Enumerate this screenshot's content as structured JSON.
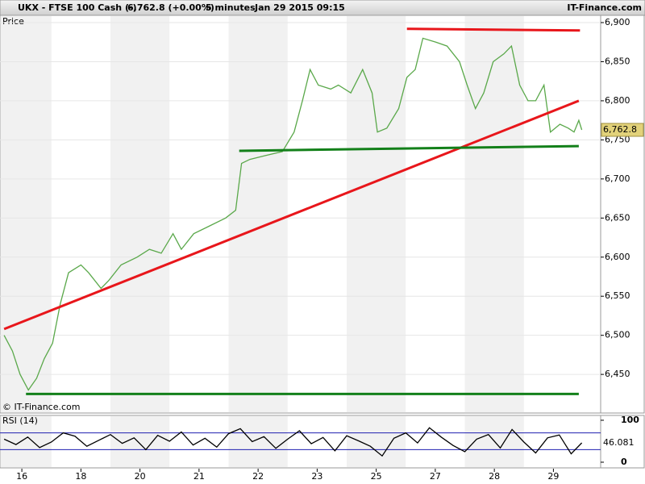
{
  "header": {
    "symbol": "UKX - FTSE 100 Cash (-)",
    "quote": "6,762.8 (+0.00%)",
    "period": "5 minutes",
    "date": "Jan 29 2015 09:15",
    "brand": "IT-Finance.com"
  },
  "chart_data": [
    {
      "type": "line",
      "title": "Price",
      "credit": "© IT-Finance.com",
      "xlim": [
        -0.37,
        9.8
      ],
      "xticks": [
        {
          "value": 0,
          "label": "16"
        },
        {
          "value": 1,
          "label": "18"
        },
        {
          "value": 2,
          "label": "20"
        },
        {
          "value": 3,
          "label": "21"
        },
        {
          "value": 4,
          "label": "22"
        },
        {
          "value": 5,
          "label": "23"
        },
        {
          "value": 6,
          "label": "25"
        },
        {
          "value": 7,
          "label": "27"
        },
        {
          "value": 8,
          "label": "28"
        },
        {
          "value": 9,
          "label": "29"
        }
      ],
      "ylim": [
        6400.6,
        6909.3
      ],
      "yticks": [
        {
          "value": 6450,
          "label": "6,450"
        },
        {
          "value": 6500,
          "label": "6,500"
        },
        {
          "value": 6550,
          "label": "6,550"
        },
        {
          "value": 6600,
          "label": "6,600"
        },
        {
          "value": 6650,
          "label": "6,650"
        },
        {
          "value": 6700,
          "label": "6,700"
        },
        {
          "value": 6750,
          "label": "6,750"
        },
        {
          "value": 6800,
          "label": "6,800"
        },
        {
          "value": 6850,
          "label": "6,850"
        },
        {
          "value": 6900,
          "label": "6,900"
        }
      ],
      "grid": true,
      "last": {
        "value": 6762.8,
        "label": "6,762.8"
      },
      "series": [
        {
          "color": "#5aa84a",
          "x": [
            -0.3,
            -0.16,
            -0.03,
            0.11,
            0.25,
            0.38,
            0.52,
            0.65,
            0.79,
            1.0,
            1.13,
            1.34,
            1.47,
            1.68,
            1.95,
            2.16,
            2.36,
            2.56,
            2.7,
            2.91,
            3.18,
            3.45,
            3.62,
            3.72,
            3.86,
            4.13,
            4.41,
            4.61,
            4.75,
            4.88,
            5.02,
            5.23,
            5.36,
            5.57,
            5.77,
            5.93,
            6.02,
            6.18,
            6.38,
            6.52,
            6.66,
            6.79,
            7.01,
            7.2,
            7.41,
            7.54,
            7.68,
            7.82,
            7.98,
            8.16,
            8.29,
            8.43,
            8.57,
            8.7,
            8.84,
            8.95,
            9.11,
            9.25,
            9.35,
            9.43,
            9.48
          ],
          "values": [
            6500,
            6480,
            6450,
            6430,
            6445,
            6470,
            6490,
            6540,
            6580,
            6590,
            6580,
            6560,
            6570,
            6590,
            6600,
            6610,
            6605,
            6630,
            6610,
            6630,
            6640,
            6650,
            6660,
            6720,
            6725,
            6730,
            6735,
            6760,
            6800,
            6840,
            6820,
            6815,
            6820,
            6810,
            6840,
            6810,
            6760,
            6765,
            6790,
            6830,
            6840,
            6880,
            6875,
            6870,
            6850,
            6820,
            6790,
            6810,
            6850,
            6860,
            6870,
            6820,
            6800,
            6800,
            6820,
            6760,
            6770,
            6765,
            6760,
            6775,
            6762.8
          ]
        }
      ],
      "trendlines": [
        {
          "color": "#e8161b",
          "x": [
            -0.3,
            9.43
          ],
          "y": [
            6508,
            6800
          ]
        },
        {
          "color": "#e8161b",
          "x": [
            6.52,
            9.45
          ],
          "y": [
            6892,
            6890
          ]
        },
        {
          "color": "#13801a",
          "x": [
            3.68,
            9.43
          ],
          "y": [
            6736,
            6742
          ]
        },
        {
          "color": "#13801a",
          "x": [
            0.07,
            9.43
          ],
          "y": [
            6425,
            6425
          ]
        }
      ]
    },
    {
      "type": "line",
      "title": "RSI (14)",
      "xlim": [
        -0.37,
        9.8
      ],
      "ylim": [
        -13.5,
        111.5
      ],
      "yticks": [
        0,
        100
      ],
      "levels": [
        30,
        70
      ],
      "last": {
        "value": 46.081,
        "label": "46.081"
      },
      "series": [
        {
          "color": "#000000",
          "x": [
            -0.3,
            -0.1,
            0.1,
            0.3,
            0.5,
            0.7,
            0.9,
            1.1,
            1.3,
            1.5,
            1.7,
            1.9,
            2.1,
            2.3,
            2.5,
            2.7,
            2.9,
            3.1,
            3.3,
            3.5,
            3.7,
            3.9,
            4.1,
            4.3,
            4.5,
            4.7,
            4.9,
            5.1,
            5.3,
            5.5,
            5.7,
            5.9,
            6.1,
            6.3,
            6.5,
            6.7,
            6.9,
            7.1,
            7.3,
            7.5,
            7.7,
            7.9,
            8.1,
            8.3,
            8.5,
            8.7,
            8.9,
            9.1,
            9.3,
            9.48
          ],
          "values": [
            55,
            42,
            60,
            35,
            48,
            70,
            62,
            38,
            52,
            66,
            45,
            58,
            30,
            64,
            50,
            72,
            41,
            57,
            36,
            68,
            80,
            49,
            61,
            33,
            55,
            75,
            44,
            59,
            27,
            63,
            51,
            38,
            15,
            57,
            70,
            46,
            82,
            60,
            40,
            25,
            55,
            66,
            34,
            78,
            48,
            22,
            58,
            65,
            20,
            46.081
          ]
        }
      ]
    }
  ]
}
